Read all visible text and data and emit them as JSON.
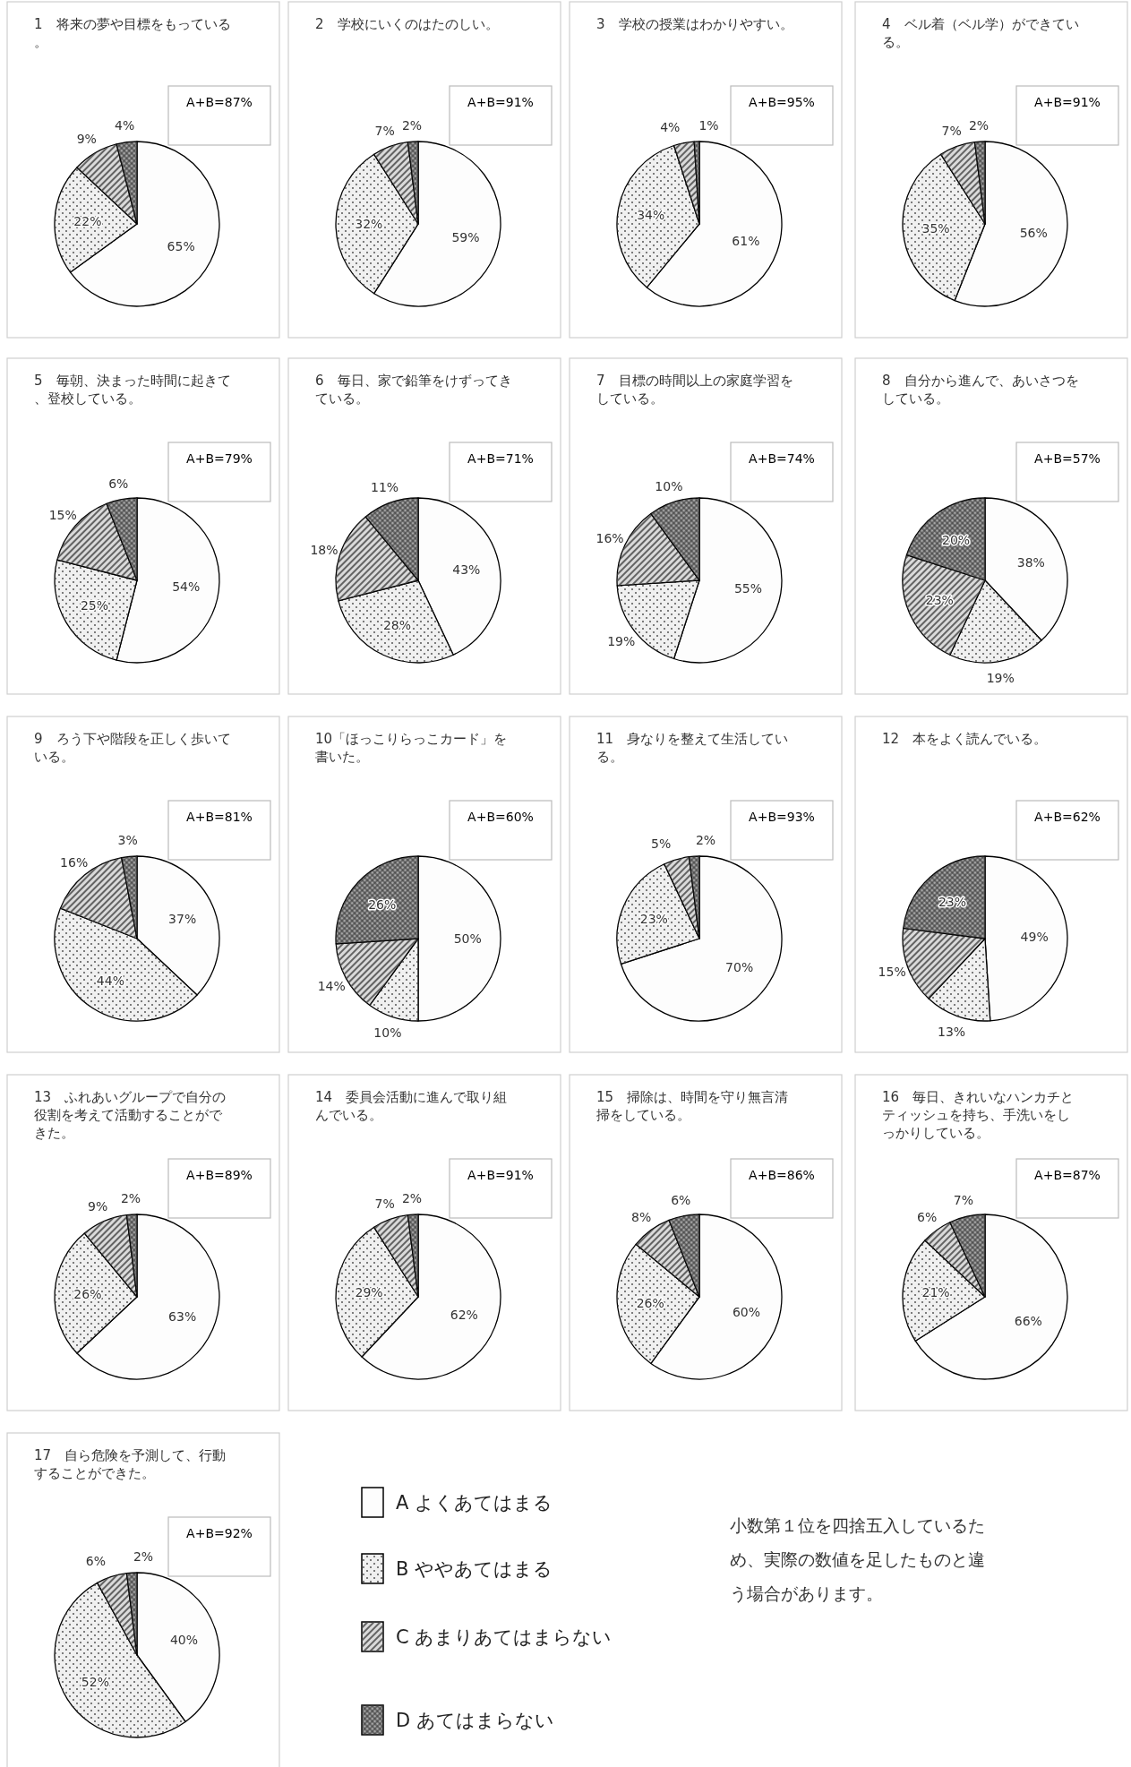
{
  "chart_data": [
    {
      "type": "pie",
      "title": "1　将来の夢や目標をもっている。",
      "categories": [
        null,
        null,
        null,
        null
      ],
      "values": [
        65,
        22,
        9,
        4
      ],
      "value_labels": [
        "65%",
        "22%",
        "9%",
        "4%"
      ],
      "colors": [
        "#fdfdfd",
        "#f0f0f0",
        "#dadada",
        "#a6a6a6"
      ],
      "annotations": [
        "A+B=87%"
      ],
      "legend": false
    },
    {
      "type": "pie",
      "title": "2　学校にいくのはたのしい。",
      "categories": [
        null,
        null,
        null,
        null
      ],
      "values": [
        59,
        32,
        7,
        2
      ],
      "value_labels": [
        "59%",
        "32%",
        "7%",
        "2%"
      ],
      "colors": [
        "#fdfdfd",
        "#f0f0f0",
        "#dadada",
        "#a6a6a6"
      ],
      "annotations": [
        "A+B=91%"
      ],
      "legend": false
    },
    {
      "type": "pie",
      "title": "3　学校の授業はわかりやすい。",
      "categories": [
        null,
        null,
        null,
        null
      ],
      "values": [
        61,
        34,
        4,
        1
      ],
      "value_labels": [
        "61%",
        "34%",
        "4%",
        "1%"
      ],
      "colors": [
        "#fdfdfd",
        "#f0f0f0",
        "#dadada",
        "#a6a6a6"
      ],
      "annotations": [
        "A+B=95%"
      ],
      "legend": false
    },
    {
      "type": "pie",
      "title": "4　ベル着（ベル学）ができている。",
      "categories": [
        null,
        null,
        null,
        null
      ],
      "values": [
        56,
        35,
        7,
        2
      ],
      "value_labels": [
        "56%",
        "35%",
        "7%",
        "2%"
      ],
      "colors": [
        "#fdfdfd",
        "#f0f0f0",
        "#dadada",
        "#a6a6a6"
      ],
      "annotations": [
        "A+B=91%"
      ],
      "legend": false
    },
    {
      "type": "pie",
      "title": "5　毎朝、決まった時間に起きて、登校している。",
      "categories": [
        null,
        null,
        null,
        null
      ],
      "values": [
        54,
        25,
        15,
        6
      ],
      "value_labels": [
        "54%",
        "25%",
        "15%",
        "6%"
      ],
      "colors": [
        "#fdfdfd",
        "#f0f0f0",
        "#dadada",
        "#a6a6a6"
      ],
      "annotations": [
        "A+B=79%"
      ],
      "legend": false
    },
    {
      "type": "pie",
      "title": "6　毎日、家で鉛筆をけずってきている。",
      "categories": [
        null,
        null,
        null,
        null
      ],
      "values": [
        43,
        28,
        18,
        11
      ],
      "value_labels": [
        "43%",
        "28%",
        "18%",
        "11%"
      ],
      "colors": [
        "#fdfdfd",
        "#f0f0f0",
        "#dadada",
        "#a6a6a6"
      ],
      "annotations": [
        "A+B=71%"
      ],
      "legend": false
    },
    {
      "type": "pie",
      "title": "7　目標の時間以上の家庭学習をしている。",
      "categories": [
        null,
        null,
        null,
        null
      ],
      "values": [
        55,
        19,
        16,
        10
      ],
      "value_labels": [
        "55%",
        "19%",
        "16%",
        "10%"
      ],
      "colors": [
        "#fdfdfd",
        "#f0f0f0",
        "#dadada",
        "#a6a6a6"
      ],
      "annotations": [
        "A+B=74%"
      ],
      "legend": false
    },
    {
      "type": "pie",
      "title": "8　自分から進んで、あいさつをしている。",
      "categories": [
        null,
        null,
        null,
        null
      ],
      "values": [
        38,
        19,
        23,
        20
      ],
      "value_labels": [
        "38%",
        "19%",
        "23%",
        "20%"
      ],
      "colors": [
        "#fdfdfd",
        "#f0f0f0",
        "#dadada",
        "#a6a6a6"
      ],
      "annotations": [
        "A+B=57%"
      ],
      "legend": false
    },
    {
      "type": "pie",
      "title": "9　ろう下や階段を正しく歩いている。",
      "categories": [
        null,
        null,
        null,
        null
      ],
      "values": [
        37,
        44,
        16,
        3
      ],
      "value_labels": [
        "37%",
        "44%",
        "16%",
        "3%"
      ],
      "colors": [
        "#fdfdfd",
        "#f0f0f0",
        "#dadada",
        "#a6a6a6"
      ],
      "annotations": [
        "A+B=81%"
      ],
      "legend": false
    },
    {
      "type": "pie",
      "title": "10「ほっこりらっこカード」を書いた。",
      "categories": [
        null,
        null,
        null,
        null
      ],
      "values": [
        50,
        10,
        14,
        26
      ],
      "value_labels": [
        "50%",
        "10%",
        "14%",
        "26%"
      ],
      "colors": [
        "#fdfdfd",
        "#f0f0f0",
        "#dadada",
        "#a6a6a6"
      ],
      "annotations": [
        "A+B=60%"
      ],
      "legend": false
    },
    {
      "type": "pie",
      "title": "11　身なりを整えて生活している。",
      "categories": [
        null,
        null,
        null,
        null
      ],
      "values": [
        70,
        23,
        5,
        2
      ],
      "value_labels": [
        "70%",
        "23%",
        "5%",
        "2%"
      ],
      "colors": [
        "#fdfdfd",
        "#f0f0f0",
        "#dadada",
        "#a6a6a6"
      ],
      "annotations": [
        "A+B=93%"
      ],
      "legend": false
    },
    {
      "type": "pie",
      "title": "12　本をよく読んでいる。",
      "categories": [
        null,
        null,
        null,
        null
      ],
      "values": [
        49,
        13,
        15,
        23
      ],
      "value_labels": [
        "49%",
        "13%",
        "15%",
        "23%"
      ],
      "colors": [
        "#fdfdfd",
        "#f0f0f0",
        "#dadada",
        "#a6a6a6"
      ],
      "annotations": [
        "A+B=62%"
      ],
      "legend": false
    },
    {
      "type": "pie",
      "title": "13　ふれあいグループで自分の役割を考えて活動することができた。",
      "categories": [
        null,
        null,
        null,
        null
      ],
      "values": [
        63,
        26,
        9,
        2
      ],
      "value_labels": [
        "63%",
        "26%",
        "9%",
        "2%"
      ],
      "colors": [
        "#fdfdfd",
        "#f0f0f0",
        "#dadada",
        "#a6a6a6"
      ],
      "annotations": [
        "A+B=89%"
      ],
      "legend": false
    },
    {
      "type": "pie",
      "title": "14　委員会活動に進んで取り組んでいる。",
      "categories": [
        null,
        null,
        null,
        null
      ],
      "values": [
        62,
        29,
        7,
        2
      ],
      "value_labels": [
        "62%",
        "29%",
        "7%",
        "2%"
      ],
      "colors": [
        "#fdfdfd",
        "#f0f0f0",
        "#dadada",
        "#a6a6a6"
      ],
      "annotations": [
        "A+B=91%"
      ],
      "legend": false
    },
    {
      "type": "pie",
      "title": "15　掃除は、時間を守り無言清掃をしている。",
      "categories": [
        null,
        null,
        null,
        null
      ],
      "values": [
        60,
        26,
        8,
        6
      ],
      "value_labels": [
        "60%",
        "26%",
        "8%",
        "6%"
      ],
      "colors": [
        "#fdfdfd",
        "#f0f0f0",
        "#dadada",
        "#a6a6a6"
      ],
      "annotations": [
        "A+B=86%"
      ],
      "legend": false
    },
    {
      "type": "pie",
      "title": "16　毎日、きれいなハンカチとティッシュを持ち、手洗いをしっかりしている。",
      "categories": [
        null,
        null,
        null,
        null
      ],
      "values": [
        66,
        21,
        6,
        7
      ],
      "value_labels": [
        "66%",
        "21%",
        "6%",
        "7%"
      ],
      "colors": [
        "#fdfdfd",
        "#f0f0f0",
        "#dadada",
        "#a6a6a6"
      ],
      "annotations": [
        "A+B=87%"
      ],
      "legend": false
    },
    {
      "type": "pie",
      "title": "17　自ら危険を予測して、行動することができた。",
      "categories": [
        "A よくあてはまる",
        "B ややあてはまる",
        "C あまりあてはまらない",
        "D あてはまらない"
      ],
      "values": [
        40,
        52,
        6,
        2
      ],
      "value_labels": [
        "40%",
        "52%",
        "6%",
        "2%"
      ],
      "colors": [
        "#fdfdfd",
        "#f0f0f0",
        "#dadada",
        "#a6a6a6"
      ],
      "annotations": [
        "A+B=92%",
        "小数第１位を四捨五入しているため、実際の数値を足したものと違う場合があります。"
      ],
      "legend": "right"
    }
  ]
}
